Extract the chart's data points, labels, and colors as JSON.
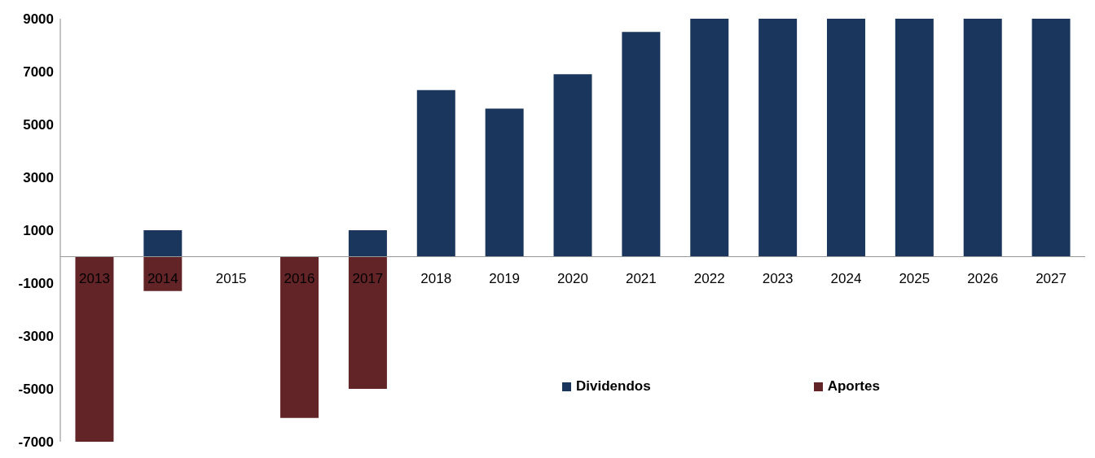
{
  "chart_data": {
    "type": "bar",
    "stacked": true,
    "categories": [
      "2013",
      "2014",
      "2015",
      "2016",
      "2017",
      "2018",
      "2019",
      "2020",
      "2021",
      "2022",
      "2023",
      "2024",
      "2025",
      "2026",
      "2027"
    ],
    "series": [
      {
        "name": "Dividendos",
        "color": "#1a365d",
        "values": [
          0,
          1000,
          0,
          0,
          1000,
          6300,
          5600,
          6900,
          8500,
          9000,
          9000,
          9000,
          9000,
          9000,
          9000
        ]
      },
      {
        "name": "Aportes",
        "color": "#622426",
        "values": [
          -7000,
          -1300,
          0,
          -6100,
          -5000,
          0,
          0,
          0,
          0,
          0,
          0,
          0,
          0,
          0,
          0
        ]
      }
    ],
    "ylim": [
      -7000,
      9000
    ],
    "yticks": [
      -7000,
      -5000,
      -3000,
      -1000,
      1000,
      3000,
      5000,
      7000,
      9000
    ],
    "grid": false,
    "legend": "bottom right"
  }
}
